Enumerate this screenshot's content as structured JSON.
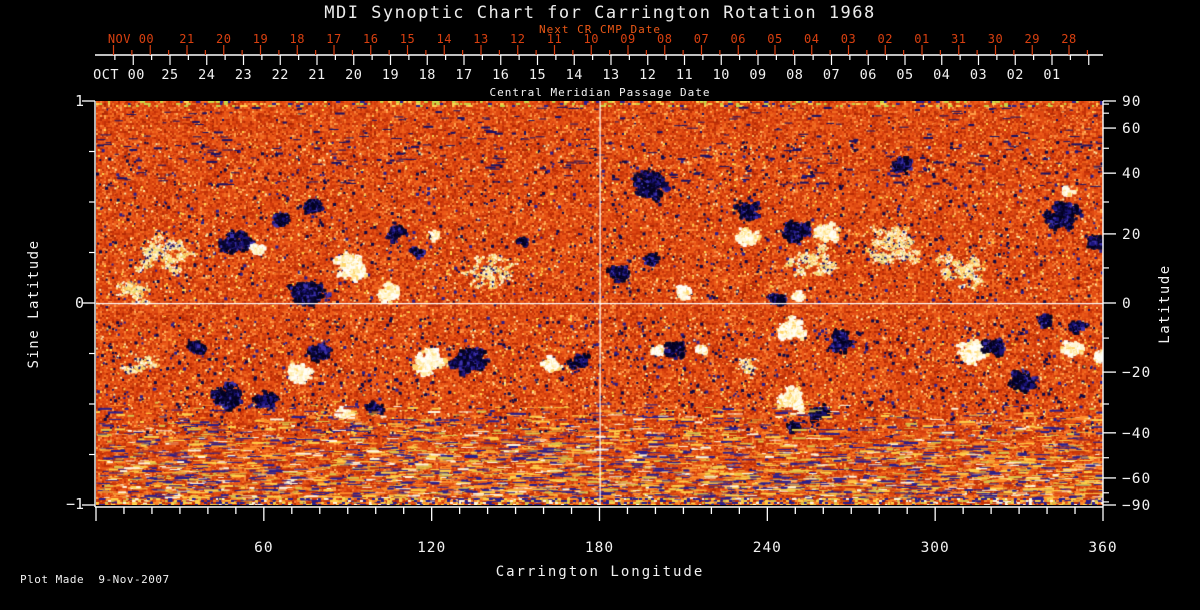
{
  "title": "MDI Synoptic Chart for Carrington Rotation 1968",
  "footer": {
    "plot_made": "Plot Made  9-Nov-2007"
  },
  "colors": {
    "background": "#000000",
    "axis": "#ffffff",
    "white_text": "#f2f2f2",
    "red_text": "#d94010",
    "next_cr_text": "#ec5816",
    "crosshair": "#ffffff"
  },
  "chart_data": {
    "type": "heatmap",
    "title": "MDI Synoptic Chart for Carrington Rotation 1968",
    "xlabel": "Carrington Longitude",
    "ylabel_left": "Sine Latitude",
    "ylabel_right": "Latitude",
    "x_axis": {
      "min": 0,
      "max": 360,
      "major_ticks": [
        60,
        120,
        180,
        240,
        300,
        360
      ],
      "minor_step": 10
    },
    "y_axis_left": {
      "min": -1,
      "max": 1,
      "major_ticks": [
        1,
        0,
        -1
      ],
      "minor_step": 0.25
    },
    "y_axis_right": {
      "unit": "degrees",
      "major_ticks": [
        90,
        60,
        40,
        20,
        0,
        -20,
        -40,
        -60,
        -90
      ],
      "minor_ticks": [
        80,
        70,
        50,
        30,
        10,
        -10,
        -30,
        -50,
        -70,
        -80
      ]
    },
    "top_axes": {
      "next_cr": {
        "title": "Next CR CMP Date",
        "month_label": "NOV 00",
        "day_labels": [
          "21",
          "20",
          "19",
          "18",
          "17",
          "16",
          "15",
          "14",
          "13",
          "12",
          "11",
          "10",
          "09",
          "08",
          "07",
          "06",
          "05",
          "04",
          "03",
          "02",
          "01",
          "31",
          "30",
          "29",
          "28"
        ]
      },
      "cmp": {
        "title": "Central Meridian Passage Date",
        "month_label": "OCT 00",
        "day_labels": [
          "25",
          "24",
          "23",
          "22",
          "21",
          "20",
          "19",
          "18",
          "17",
          "16",
          "15",
          "14",
          "13",
          "12",
          "11",
          "10",
          "09",
          "08",
          "07",
          "06",
          "05",
          "04",
          "03",
          "02",
          "01"
        ]
      }
    },
    "crosshair": {
      "longitude": 180,
      "sine_latitude": 0
    },
    "colormap": {
      "base_noise": [
        [
          "#df4a12",
          0.2
        ],
        [
          "#d13a0b",
          0.15
        ],
        [
          "#ec5a18",
          0.14
        ],
        [
          "#c23108",
          0.1
        ],
        [
          "#f16c22",
          0.1
        ],
        [
          "#b52b06",
          0.06
        ],
        [
          "#f8823a",
          0.06
        ],
        [
          "#e85318",
          0.08
        ],
        [
          "#ff9e48",
          0.03
        ],
        [
          "#cb4210",
          0.04
        ],
        [
          "#a82605",
          0.02
        ],
        [
          "#ffb35c",
          0.01
        ],
        [
          "#1c1260",
          0.005
        ],
        [
          "#ffd34f",
          0.005
        ]
      ],
      "negative_polarity": [
        [
          "#04031f",
          0.4
        ],
        [
          "#0a0736",
          0.25
        ],
        [
          "#1c147a",
          0.2
        ],
        [
          "#3d32ad",
          0.15
        ]
      ],
      "positive_polarity": [
        [
          "#fffef8",
          0.45
        ],
        [
          "#fff6d0",
          0.25
        ],
        [
          "#ffeaa0",
          0.18
        ],
        [
          "#ffd66a",
          0.12
        ]
      ],
      "plage": [
        [
          "#ffedb4",
          0.4
        ],
        [
          "#fffdf0",
          0.18
        ],
        [
          "#ffd96a",
          0.22
        ],
        [
          "#ffb044",
          0.1
        ],
        [
          "#e8e07a",
          0.1
        ]
      ],
      "polar_streaks": [
        [
          "#2a1e8c",
          0.26
        ],
        [
          "#ffd04a",
          0.2
        ],
        [
          "#d8c24a",
          0.1
        ],
        [
          "#fff6dc",
          0.1
        ],
        [
          "#ff8c2a",
          0.14
        ],
        [
          "#c23008",
          0.12
        ],
        [
          "#e85a1a",
          0.08
        ]
      ]
    },
    "active_regions": [
      {
        "lon": 49.8,
        "slat": 0.31,
        "r": 18,
        "pol": "neg"
      },
      {
        "lon": 57.3,
        "slat": 0.28,
        "r": 8,
        "pol": "pos"
      },
      {
        "lon": 74.9,
        "slat": 0.06,
        "r": 24,
        "pol": "neg"
      },
      {
        "lon": 76.6,
        "slat": 0.49,
        "r": 12,
        "pol": "neg"
      },
      {
        "lon": 91.0,
        "slat": 0.19,
        "r": 20,
        "pol": "pos"
      },
      {
        "lon": 103.5,
        "slat": 0.06,
        "r": 14,
        "pol": "pos"
      },
      {
        "lon": 114.3,
        "slat": 0.26,
        "r": 8,
        "pol": "neg"
      },
      {
        "lon": 120.3,
        "slat": 0.34,
        "r": 7,
        "pol": "pos"
      },
      {
        "lon": 151.9,
        "slat": 0.31,
        "r": 7,
        "pol": "neg"
      },
      {
        "lon": 24.7,
        "slat": 0.24,
        "r": 40,
        "pol": "plage"
      },
      {
        "lon": 15.8,
        "slat": 0.06,
        "r": 26,
        "pol": "plage"
      },
      {
        "lon": 140.0,
        "slat": 0.18,
        "r": 30,
        "pol": "plage"
      },
      {
        "lon": 66.0,
        "slat": 0.42,
        "r": 10,
        "pol": "neg"
      },
      {
        "lon": 107.0,
        "slat": 0.35,
        "r": 12,
        "pol": "neg"
      },
      {
        "lon": 35.5,
        "slat": -0.21,
        "r": 10,
        "pol": "neg"
      },
      {
        "lon": 15.8,
        "slat": -0.31,
        "r": 20,
        "pol": "plage"
      },
      {
        "lon": 46.2,
        "slat": -0.46,
        "r": 20,
        "pol": "neg"
      },
      {
        "lon": 60.5,
        "slat": -0.48,
        "r": 14,
        "pol": "neg"
      },
      {
        "lon": 73.1,
        "slat": -0.34,
        "r": 15,
        "pol": "pos"
      },
      {
        "lon": 79.5,
        "slat": -0.24,
        "r": 13,
        "pol": "neg"
      },
      {
        "lon": 88.5,
        "slat": -0.54,
        "r": 11,
        "pol": "pos"
      },
      {
        "lon": 98.9,
        "slat": -0.52,
        "r": 10,
        "pol": "neg"
      },
      {
        "lon": 119.6,
        "slat": -0.29,
        "r": 19,
        "pol": "pos"
      },
      {
        "lon": 133.2,
        "slat": -0.28,
        "r": 21,
        "pol": "neg"
      },
      {
        "lon": 162.6,
        "slat": -0.29,
        "r": 12,
        "pol": "pos"
      },
      {
        "lon": 172.3,
        "slat": -0.28,
        "r": 12,
        "pol": "neg"
      },
      {
        "lon": 197.7,
        "slat": 0.59,
        "r": 22,
        "pol": "neg"
      },
      {
        "lon": 232.4,
        "slat": 0.47,
        "r": 15,
        "pol": "neg"
      },
      {
        "lon": 250.4,
        "slat": 0.36,
        "r": 17,
        "pol": "neg"
      },
      {
        "lon": 232.4,
        "slat": 0.34,
        "r": 13,
        "pol": "pos"
      },
      {
        "lon": 261.1,
        "slat": 0.36,
        "r": 15,
        "pol": "pos"
      },
      {
        "lon": 284.4,
        "slat": 0.29,
        "r": 40,
        "pol": "plage"
      },
      {
        "lon": 255.0,
        "slat": 0.2,
        "r": 30,
        "pol": "plage"
      },
      {
        "lon": 310.0,
        "slat": 0.15,
        "r": 35,
        "pol": "plage"
      },
      {
        "lon": 198.4,
        "slat": 0.22,
        "r": 10,
        "pol": "neg"
      },
      {
        "lon": 185.9,
        "slat": 0.16,
        "r": 13,
        "pol": "neg"
      },
      {
        "lon": 209.2,
        "slat": 0.06,
        "r": 9,
        "pol": "pos"
      },
      {
        "lon": 243.9,
        "slat": 0.03,
        "r": 11,
        "pol": "neg"
      },
      {
        "lon": 251.1,
        "slat": 0.04,
        "r": 8,
        "pol": "pos"
      },
      {
        "lon": 288.0,
        "slat": 0.69,
        "r": 12,
        "pol": "neg"
      },
      {
        "lon": 345.3,
        "slat": 0.44,
        "r": 20,
        "pol": "neg"
      },
      {
        "lon": 346.7,
        "slat": 0.56,
        "r": 7,
        "pol": "pos"
      },
      {
        "lon": 356.0,
        "slat": 0.31,
        "r": 11,
        "pol": "neg"
      },
      {
        "lon": 200.2,
        "slat": -0.23,
        "r": 8,
        "pol": "pos"
      },
      {
        "lon": 206.7,
        "slat": -0.22,
        "r": 12,
        "pol": "neg"
      },
      {
        "lon": 216.3,
        "slat": -0.22,
        "r": 7,
        "pol": "pos"
      },
      {
        "lon": 230.7,
        "slat": -0.31,
        "r": 17,
        "pol": "plage"
      },
      {
        "lon": 247.9,
        "slat": -0.12,
        "r": 18,
        "pol": "pos"
      },
      {
        "lon": 265.8,
        "slat": -0.18,
        "r": 16,
        "pol": "neg"
      },
      {
        "lon": 248.6,
        "slat": -0.47,
        "r": 17,
        "pol": "pos"
      },
      {
        "lon": 257.6,
        "slat": -0.54,
        "r": 13,
        "pol": "neg"
      },
      {
        "lon": 248.6,
        "slat": -0.62,
        "r": 9,
        "pol": "neg"
      },
      {
        "lon": 312.3,
        "slat": -0.24,
        "r": 18,
        "pol": "pos"
      },
      {
        "lon": 320.9,
        "slat": -0.21,
        "r": 14,
        "pol": "neg"
      },
      {
        "lon": 330.9,
        "slat": -0.38,
        "r": 16,
        "pol": "neg"
      },
      {
        "lon": 348.2,
        "slat": -0.22,
        "r": 12,
        "pol": "pos"
      },
      {
        "lon": 358.9,
        "slat": -0.26,
        "r": 8,
        "pol": "pos"
      },
      {
        "lon": 350.7,
        "slat": -0.11,
        "r": 10,
        "pol": "neg"
      },
      {
        "lon": 338.1,
        "slat": -0.08,
        "r": 10,
        "pol": "neg"
      }
    ]
  }
}
